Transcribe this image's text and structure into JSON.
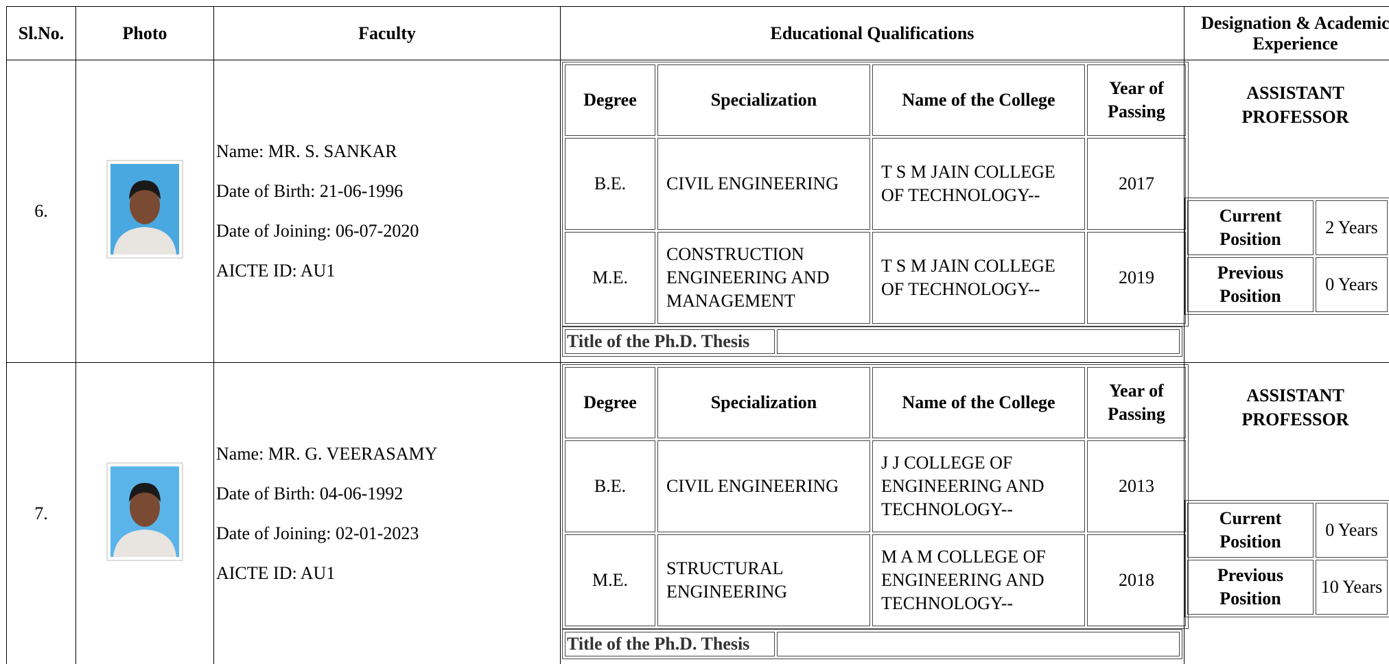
{
  "header": [
    "Sl.No.",
    "Photo",
    "Faculty",
    "Educational Qualifications",
    "Designation & Academic Experience"
  ],
  "qualification_headers": [
    "Degree",
    "Specialization",
    "Name of the College",
    "Year of Passing"
  ],
  "thesis_label": "Title of the Ph.D. Thesis",
  "rows": [
    {
      "sl": "6.",
      "faculty": [
        "Name: MR. S. SANKAR",
        "Date of Birth: 21-06-1996",
        "Date of Joining: 06-07-2020",
        "AICTE ID: AU1"
      ],
      "qualifications": [
        [
          "B.E.",
          "CIVIL ENGINEERING",
          "T S M JAIN COLLEGE OF TECHNOLOGY--",
          "2017"
        ],
        [
          "M.E.",
          "CONSTRUCTION ENGINEERING AND MANAGEMENT",
          "T S M JAIN COLLEGE OF TECHNOLOGY--",
          "2019"
        ]
      ],
      "designation": "ASSISTANT PROFESSOR",
      "experience": [
        [
          "Current Position",
          "2 Years"
        ],
        [
          "Previous Position",
          "0 Years"
        ]
      ]
    },
    {
      "sl": "7.",
      "faculty": [
        "Name: MR. G. VEERASAMY",
        "Date of Birth: 04-06-1992",
        "Date of Joining: 02-01-2023",
        "AICTE ID: AU1"
      ],
      "qualifications": [
        [
          "B.E.",
          "CIVIL ENGINEERING",
          "J J COLLEGE OF ENGINEERING AND TECHNOLOGY--",
          "2013"
        ],
        [
          "M.E.",
          "STRUCTURAL ENGINEERING",
          "M A M COLLEGE OF ENGINEERING AND TECHNOLOGY--",
          "2018"
        ]
      ],
      "designation": "ASSISTANT PROFESSOR",
      "experience": [
        [
          "Current Position",
          "0 Years"
        ],
        [
          "Previous Position",
          "10 Years"
        ]
      ]
    }
  ]
}
